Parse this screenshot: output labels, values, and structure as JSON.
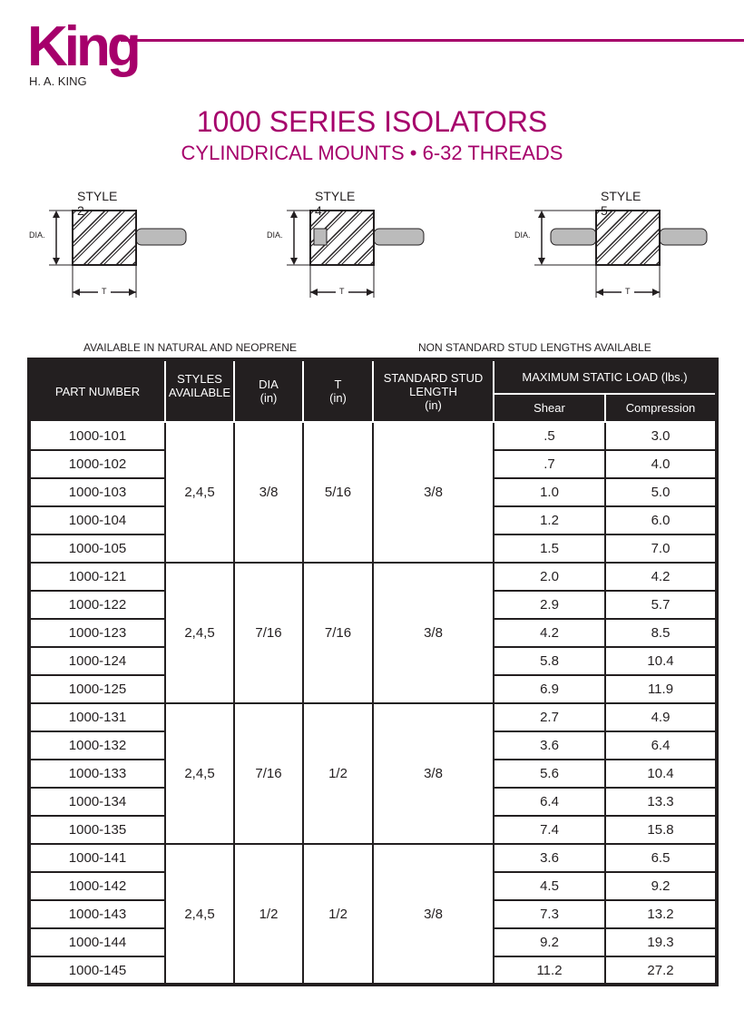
{
  "brand": {
    "logo_word": "King",
    "company": "H. A. KING",
    "color": "#a6006b"
  },
  "title": "1000 SERIES ISOLATORS",
  "subtitle": "CYLINDRICAL MOUNTS • 6-32 THREADS",
  "styles": [
    {
      "label": "STYLE 2",
      "dia": "DIA.",
      "t": "T"
    },
    {
      "label": "STYLE 4",
      "dia": "DIA.",
      "t": "T"
    },
    {
      "label": "STYLE 5",
      "dia": "DIA.",
      "t": "T"
    }
  ],
  "notes": {
    "left": "AVAILABLE IN NATURAL AND NEOPRENE",
    "right": "NON STANDARD STUD LENGTHS AVAILABLE"
  },
  "table": {
    "headers": {
      "part": "PART NUMBER",
      "styles": "STYLES AVAILABLE",
      "dia": "DIA",
      "dia_unit": "(in)",
      "t": "T",
      "t_unit": "(in)",
      "stud": "STANDARD STUD LENGTH",
      "stud_unit": "(in)",
      "load": "MAXIMUM STATIC LOAD (lbs.)",
      "shear": "Shear",
      "compression": "Compression"
    },
    "groups": [
      {
        "styles": "2,4,5",
        "dia": "3/8",
        "t": "5/16",
        "stud": "3/8",
        "rows": [
          [
            "1000-101",
            ".5",
            "3.0"
          ],
          [
            "1000-102",
            ".7",
            "4.0"
          ],
          [
            "1000-103",
            "1.0",
            "5.0"
          ],
          [
            "1000-104",
            "1.2",
            "6.0"
          ],
          [
            "1000-105",
            "1.5",
            "7.0"
          ]
        ]
      },
      {
        "styles": "2,4,5",
        "dia": "7/16",
        "t": "7/16",
        "stud": "3/8",
        "rows": [
          [
            "1000-121",
            "2.0",
            "4.2"
          ],
          [
            "1000-122",
            "2.9",
            "5.7"
          ],
          [
            "1000-123",
            "4.2",
            "8.5"
          ],
          [
            "1000-124",
            "5.8",
            "10.4"
          ],
          [
            "1000-125",
            "6.9",
            "11.9"
          ]
        ]
      },
      {
        "styles": "2,4,5",
        "dia": "7/16",
        "t": "1/2",
        "stud": "3/8",
        "rows": [
          [
            "1000-131",
            "2.7",
            "4.9"
          ],
          [
            "1000-132",
            "3.6",
            "6.4"
          ],
          [
            "1000-133",
            "5.6",
            "10.4"
          ],
          [
            "1000-134",
            "6.4",
            "13.3"
          ],
          [
            "1000-135",
            "7.4",
            "15.8"
          ]
        ]
      },
      {
        "styles": "2,4,5",
        "dia": "1/2",
        "t": "1/2",
        "stud": "3/8",
        "rows": [
          [
            "1000-141",
            "3.6",
            "6.5"
          ],
          [
            "1000-142",
            "4.5",
            "9.2"
          ],
          [
            "1000-143",
            "7.3",
            "13.2"
          ],
          [
            "1000-144",
            "9.2",
            "19.3"
          ],
          [
            "1000-145",
            "11.2",
            "27.2"
          ]
        ]
      }
    ]
  }
}
